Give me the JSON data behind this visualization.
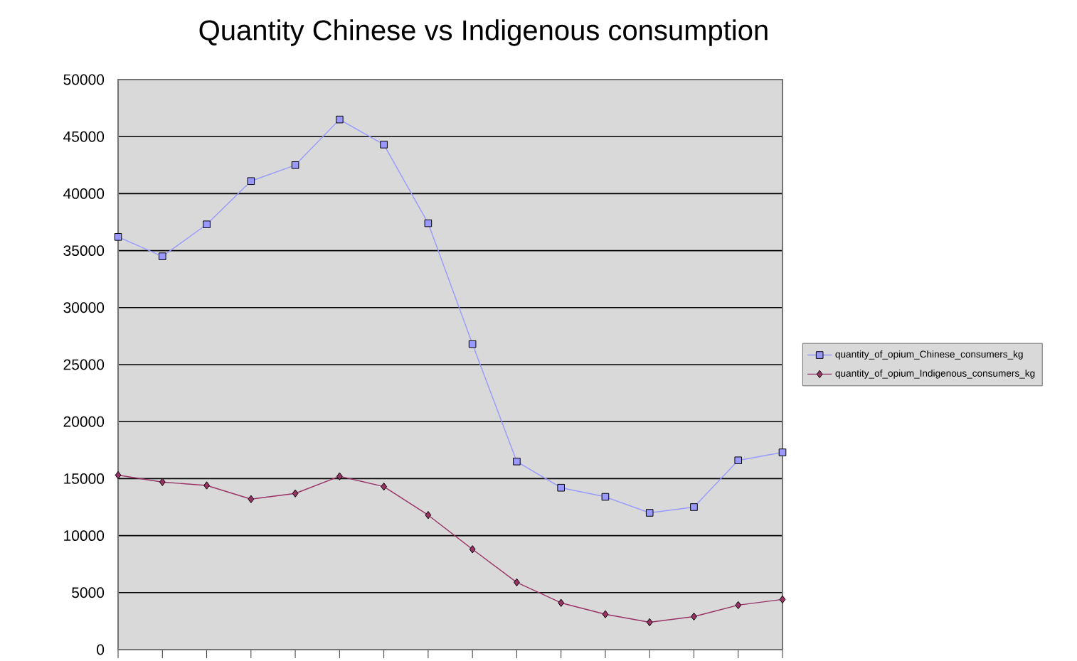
{
  "chart_data": {
    "type": "line",
    "title": "Quantity Chinese vs Indigenous consumption",
    "categories": [
      null,
      null,
      null,
      null,
      null,
      null,
      null,
      null,
      null,
      null,
      null,
      null,
      null,
      null,
      null,
      null
    ],
    "series": [
      {
        "name": "quantity_of_opium_Chinese_consumers_kg",
        "color": "#9999ff",
        "marker": "square",
        "values": [
          36200,
          34500,
          37300,
          41100,
          42500,
          46500,
          44300,
          37400,
          26800,
          16500,
          14200,
          13400,
          12000,
          12500,
          16600,
          17300
        ]
      },
      {
        "name": "quantity_of_opium_Indigenous_consumers_kg",
        "color": "#993366",
        "marker": "diamond",
        "values": [
          15300,
          14700,
          14400,
          13200,
          13700,
          15200,
          14300,
          11800,
          8800,
          5900,
          4100,
          3100,
          2400,
          2900,
          3900,
          4400
        ]
      }
    ],
    "ylim": [
      0,
      50000
    ],
    "yticks": [
      0,
      5000,
      10000,
      15000,
      20000,
      25000,
      30000,
      35000,
      40000,
      45000,
      50000
    ],
    "grid": "y",
    "legend": "right"
  }
}
